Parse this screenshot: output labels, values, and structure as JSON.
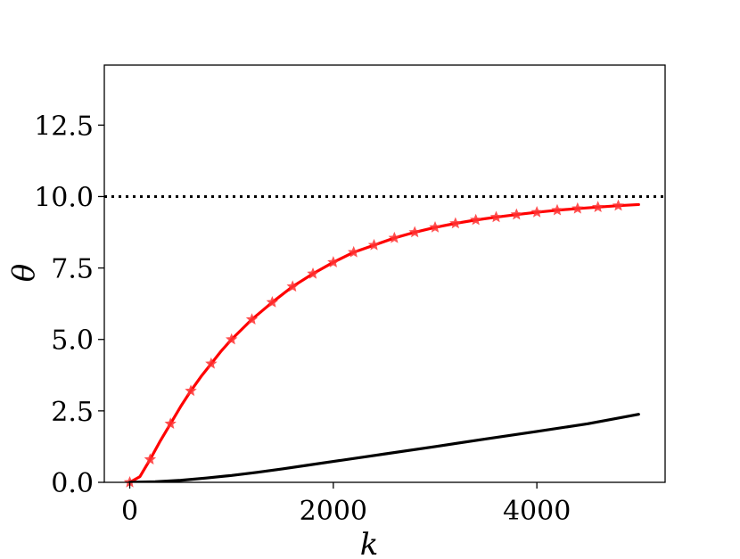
{
  "chart_data": {
    "type": "line",
    "xlabel": "k",
    "ylabel": "θ",
    "xlim": [
      -250,
      5260
    ],
    "ylim": [
      0,
      14.6
    ],
    "xticks": [
      0,
      2000,
      4000
    ],
    "xtick_labels": [
      "0",
      "2000",
      "4000"
    ],
    "yticks": [
      0,
      2.5,
      5,
      7.5,
      10,
      12.5
    ],
    "ytick_labels": [
      "0.0",
      "2.5",
      "5.0",
      "7.5",
      "10.0",
      "12.5"
    ],
    "grid": false,
    "reference_line": {
      "y": 10,
      "style": "dotted",
      "color": "#000000"
    },
    "series": [
      {
        "style": "solid",
        "color": "#ff0000",
        "marker": "none",
        "x": [
          0,
          100,
          200,
          300,
          400,
          500,
          600,
          700,
          800,
          900,
          1000,
          1200,
          1400,
          1600,
          1800,
          2000,
          2200,
          2400,
          2600,
          2800,
          3000,
          3200,
          3400,
          3600,
          3800,
          4000,
          4200,
          4400,
          4600,
          4800,
          5000
        ],
        "y": [
          0,
          0.2,
          0.8,
          1.45,
          2.05,
          2.65,
          3.2,
          3.7,
          4.15,
          4.6,
          5.0,
          5.7,
          6.3,
          6.85,
          7.3,
          7.7,
          8.05,
          8.3,
          8.55,
          8.75,
          8.92,
          9.06,
          9.18,
          9.28,
          9.37,
          9.45,
          9.52,
          9.58,
          9.63,
          9.68,
          9.72
        ]
      },
      {
        "style": "markers",
        "color": "#ff3333",
        "marker": "star",
        "x": [
          0,
          200,
          400,
          600,
          800,
          1000,
          1200,
          1400,
          1600,
          1800,
          2000,
          2200,
          2400,
          2600,
          2800,
          3000,
          3200,
          3400,
          3600,
          3800,
          4000,
          4200,
          4400,
          4600,
          4800
        ],
        "y": [
          0,
          0.8,
          2.05,
          3.2,
          4.15,
          5.0,
          5.7,
          6.3,
          6.85,
          7.3,
          7.7,
          8.05,
          8.3,
          8.55,
          8.75,
          8.92,
          9.06,
          9.18,
          9.28,
          9.37,
          9.45,
          9.52,
          9.58,
          9.63,
          9.68
        ]
      },
      {
        "style": "solid",
        "color": "#000000",
        "marker": "none",
        "x": [
          0,
          250,
          500,
          750,
          1000,
          1250,
          1500,
          1750,
          2000,
          2500,
          3000,
          3500,
          4000,
          4500,
          5000
        ],
        "y": [
          0,
          0.02,
          0.07,
          0.15,
          0.24,
          0.35,
          0.47,
          0.6,
          0.73,
          0.99,
          1.25,
          1.52,
          1.78,
          2.05,
          2.38
        ]
      }
    ]
  }
}
